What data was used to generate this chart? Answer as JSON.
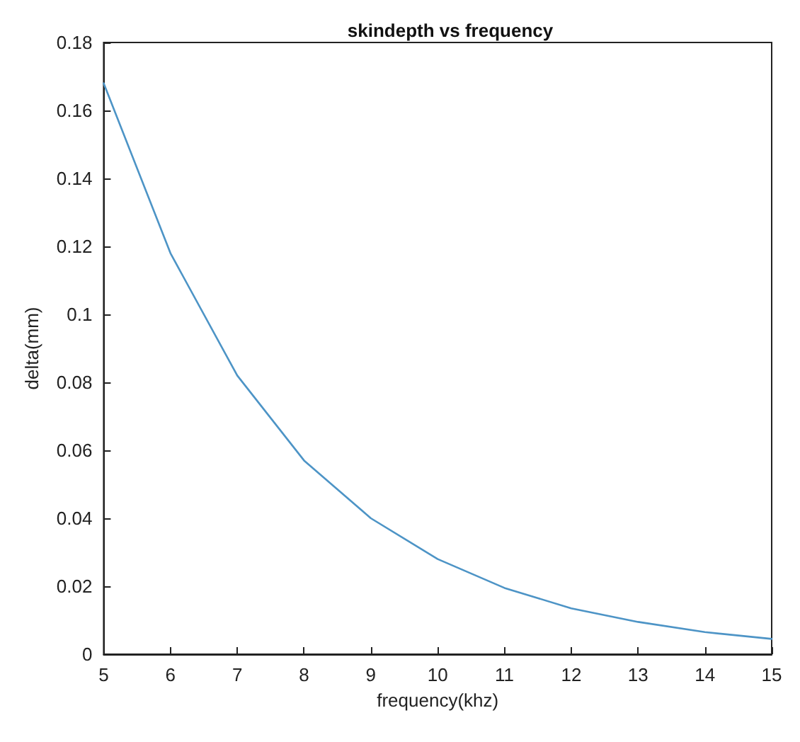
{
  "chart_data": {
    "type": "line",
    "title": "skindepth vs frequency",
    "xlabel": "frequency(khz)",
    "ylabel": "delta(mm)",
    "x": [
      5,
      6,
      7,
      8,
      9,
      10,
      11,
      12,
      13,
      14,
      15
    ],
    "series": [
      {
        "color": "#4d94c6",
        "values": [
          0.168,
          0.118,
          0.082,
          0.057,
          0.04,
          0.028,
          0.0195,
          0.0135,
          0.0095,
          0.0065,
          0.0045
        ]
      }
    ],
    "xlim": [
      5,
      15
    ],
    "xticks": [
      5,
      6,
      7,
      8,
      9,
      10,
      11,
      12,
      13,
      14,
      15
    ],
    "ylim": [
      0,
      0.18
    ],
    "yticks": [
      0,
      0.02,
      0.04,
      0.06,
      0.08,
      0.1,
      0.12,
      0.14,
      0.16,
      0.18
    ],
    "grid": false,
    "marker": "none",
    "line_style": "solid"
  }
}
